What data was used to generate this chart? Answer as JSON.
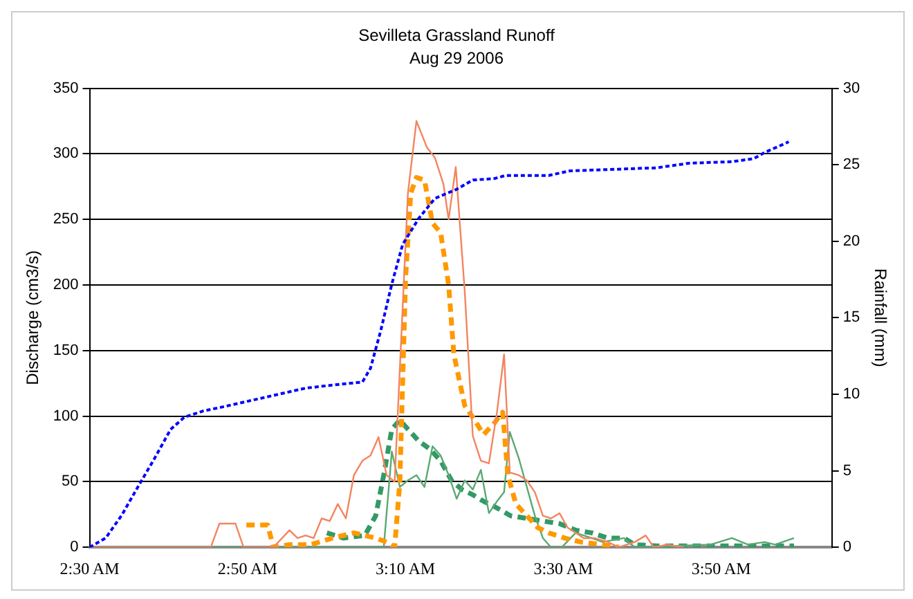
{
  "chart_data": {
    "type": "line",
    "title": "Sevilleta Grassland Runoff",
    "subtitle": "Aug 29 2006",
    "ylabel": "Discharge (cm3/s)",
    "y2label": "Rainfall (mm)",
    "xlim": [
      2.5,
      4.067
    ],
    "xticks": [
      {
        "value": 2.5,
        "label": "2:30 AM"
      },
      {
        "value": 2.8333,
        "label": "2:50 AM"
      },
      {
        "value": 3.1667,
        "label": "3:10 AM"
      },
      {
        "value": 3.5,
        "label": "3:30 AM"
      },
      {
        "value": 3.8333,
        "label": "3:50 AM"
      }
    ],
    "ylim": [
      0,
      350
    ],
    "yticks": [
      0,
      50,
      100,
      150,
      200,
      250,
      300,
      350
    ],
    "y2lim": [
      0,
      30
    ],
    "y2ticks": [
      0,
      5,
      10,
      15,
      20,
      25,
      30
    ],
    "grid": "y",
    "legend": false,
    "marker": "none",
    "series": [
      {
        "color": "#0000ff",
        "axis": "y2",
        "line_style": "dotted",
        "x": [
          2.5,
          2.534,
          2.568,
          2.603,
          2.637,
          2.671,
          2.7,
          2.739,
          2.785,
          2.842,
          2.899,
          2.956,
          3.013,
          3.076,
          3.093,
          3.115,
          3.138,
          3.161,
          3.195,
          3.229,
          3.275,
          3.309,
          3.355,
          3.378,
          3.469,
          3.514,
          3.697,
          3.765,
          3.856,
          3.902,
          3.925,
          3.976
        ],
        "values": [
          0,
          0.6,
          2.1,
          4.0,
          5.8,
          7.7,
          8.5,
          8.9,
          9.2,
          9.6,
          10.0,
          10.4,
          10.6,
          10.8,
          11.7,
          14.2,
          17.2,
          19.8,
          21.5,
          22.8,
          23.4,
          24.0,
          24.1,
          24.3,
          24.3,
          24.6,
          24.8,
          25.1,
          25.2,
          25.4,
          25.8,
          26.5
        ]
      },
      {
        "color": "#f4845f",
        "line_style": "solid",
        "x": [
          2.5,
          2.756,
          2.774,
          2.808,
          2.825,
          2.888,
          2.922,
          2.939,
          2.956,
          2.973,
          2.99,
          3.007,
          3.024,
          3.041,
          3.058,
          3.076,
          3.093,
          3.11,
          3.127,
          3.144,
          3.172,
          3.19,
          3.212,
          3.229,
          3.247,
          3.258,
          3.273,
          3.292,
          3.309,
          3.326,
          3.343,
          3.36,
          3.375,
          3.387,
          3.406,
          3.423,
          3.44,
          3.457,
          3.474,
          3.492,
          3.509,
          3.526,
          3.543,
          3.566,
          3.594,
          3.617,
          3.651,
          3.674,
          3.691,
          3.719,
          3.754
        ],
        "values": [
          0,
          0,
          18,
          18,
          0,
          0,
          13,
          7,
          9,
          7,
          22,
          20,
          33,
          22,
          55,
          66,
          70,
          84,
          55,
          50,
          270,
          325,
          305,
          297,
          277,
          250,
          290,
          195,
          85,
          66,
          64,
          103,
          147,
          57,
          55,
          51,
          42,
          24,
          22,
          26,
          15,
          11,
          7,
          7,
          4,
          0,
          4,
          9,
          0,
          2,
          0
        ]
      },
      {
        "color": "#ff9900",
        "line_style": "dashed",
        "x": [
          2.831,
          2.876,
          2.888,
          2.922,
          2.967,
          3.013,
          3.058,
          3.104,
          3.127,
          3.144,
          3.155,
          3.167,
          3.178,
          3.19,
          3.207,
          3.224,
          3.241,
          3.258,
          3.269,
          3.292,
          3.309,
          3.332,
          3.355,
          3.372,
          3.383,
          3.4,
          3.423,
          3.446,
          3.469,
          3.503,
          3.537,
          3.583,
          3.617
        ],
        "values": [
          17,
          17,
          0,
          2,
          2,
          7,
          11,
          7,
          4,
          0,
          50,
          205,
          270,
          282,
          280,
          247,
          240,
          200,
          147,
          108,
          99,
          86,
          95,
          103,
          55,
          33,
          24,
          15,
          11,
          7,
          4,
          2,
          0
        ]
      },
      {
        "color": "#5aa873",
        "line_style": "solid",
        "x": [
          2.5,
          3.121,
          3.138,
          3.155,
          3.172,
          3.19,
          3.207,
          3.224,
          3.241,
          3.258,
          3.275,
          3.292,
          3.309,
          3.326,
          3.343,
          3.36,
          3.375,
          3.387,
          3.406,
          3.423,
          3.44,
          3.457,
          3.474,
          3.497,
          3.526,
          3.56,
          3.583,
          3.628,
          3.651,
          3.811,
          3.856,
          3.89,
          3.925,
          3.947,
          3.987
        ],
        "values": [
          0,
          0,
          73,
          46,
          51,
          55,
          46,
          77,
          70,
          55,
          37,
          51,
          44,
          59,
          26,
          35,
          42,
          88,
          68,
          46,
          24,
          7,
          0,
          0,
          11,
          7,
          4,
          7,
          0,
          2,
          7,
          2,
          4,
          2,
          7
        ]
      },
      {
        "color": "#339966",
        "line_style": "dashed",
        "x": [
          3.001,
          3.036,
          3.081,
          3.104,
          3.121,
          3.138,
          3.155,
          3.172,
          3.195,
          3.218,
          3.241,
          3.264,
          3.286,
          3.309,
          3.332,
          3.355,
          3.389,
          3.423,
          3.457,
          3.492,
          3.526,
          3.56,
          3.594,
          3.628,
          3.651,
          3.697,
          3.987
        ],
        "values": [
          11,
          7,
          9,
          24,
          55,
          90,
          97,
          90,
          81,
          75,
          66,
          51,
          44,
          40,
          35,
          31,
          24,
          22,
          20,
          18,
          13,
          11,
          7,
          7,
          2,
          1,
          1
        ]
      }
    ]
  }
}
